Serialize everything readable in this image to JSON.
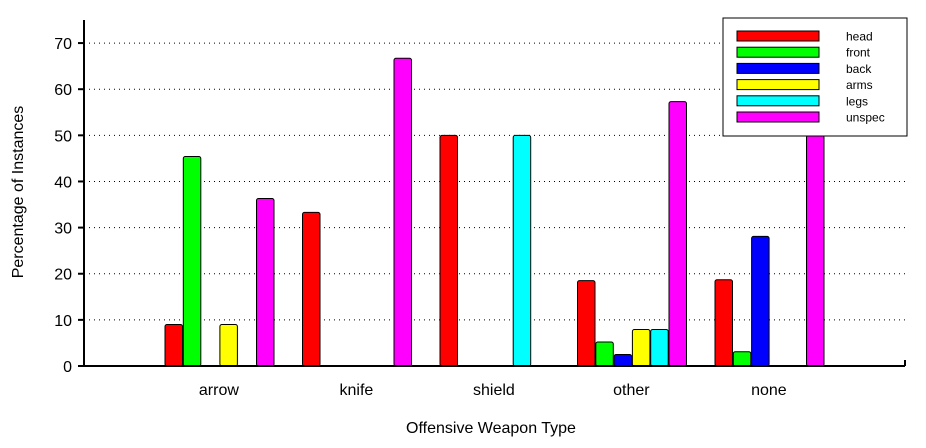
{
  "chart_data": {
    "type": "bar",
    "title": "",
    "xlabel": "Offensive Weapon Type",
    "ylabel": "Percentage of Instances",
    "ylim": [
      0,
      75
    ],
    "yticks": [
      0,
      10,
      20,
      30,
      40,
      50,
      60,
      70
    ],
    "grid": "horizontal dotted",
    "legend_position": "top-right",
    "categories": [
      "arrow",
      "knife",
      "shield",
      "other",
      "none"
    ],
    "series": [
      {
        "name": "head",
        "color": "#ff0000",
        "values": [
          9,
          33.3,
          50,
          18.5,
          18.7
        ]
      },
      {
        "name": "front",
        "color": "#00ff00",
        "values": [
          45.4,
          0,
          0,
          5.2,
          3.1
        ]
      },
      {
        "name": "back",
        "color": "#0000ff",
        "values": [
          0,
          0,
          0,
          2.5,
          28.1
        ]
      },
      {
        "name": "arms",
        "color": "#ffff00",
        "values": [
          9,
          0,
          0,
          7.9,
          0
        ]
      },
      {
        "name": "legs",
        "color": "#00ffff",
        "values": [
          0,
          0,
          50,
          7.9,
          0
        ]
      },
      {
        "name": "unspec",
        "color": "#ff00ff",
        "values": [
          36.3,
          66.7,
          0,
          57.3,
          50
        ]
      }
    ]
  }
}
